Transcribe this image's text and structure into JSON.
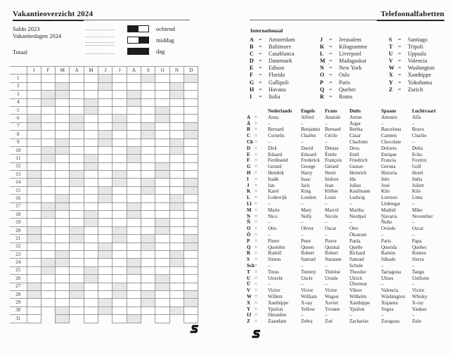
{
  "left_page": {
    "title": "Vakantieoverzicht 2024",
    "fields": [
      "Saldo 2023",
      "Vakantiedagen 2024",
      "Totaal"
    ],
    "legend": [
      {
        "label": "ochtend",
        "style": "morning"
      },
      {
        "label": "middag",
        "style": "afternoon"
      },
      {
        "label": "dag",
        "style": "full"
      }
    ],
    "calendar": {
      "month_labels": [
        "J",
        "F",
        "M",
        "A",
        "M",
        "J",
        "J",
        "A",
        "S",
        "O",
        "N",
        "D"
      ],
      "days_in_month": [
        31,
        29,
        31,
        30,
        31,
        30,
        31,
        31,
        30,
        31,
        30,
        31
      ],
      "weekend_days": [
        [
          6,
          7,
          13,
          14,
          20,
          21,
          27,
          28
        ],
        [
          3,
          4,
          10,
          11,
          17,
          18,
          24,
          25
        ],
        [
          2,
          3,
          9,
          10,
          16,
          17,
          23,
          24,
          30,
          31
        ],
        [
          6,
          7,
          13,
          14,
          20,
          21,
          27,
          28
        ],
        [
          4,
          5,
          11,
          12,
          18,
          19,
          25,
          26
        ],
        [
          1,
          2,
          8,
          9,
          15,
          16,
          22,
          23,
          29,
          30
        ],
        [
          6,
          7,
          13,
          14,
          20,
          21,
          27,
          28
        ],
        [
          3,
          4,
          10,
          11,
          17,
          18,
          24,
          25,
          31
        ],
        [
          1,
          7,
          8,
          14,
          15,
          21,
          22,
          28,
          29
        ],
        [
          5,
          6,
          12,
          13,
          19,
          20,
          26,
          27
        ],
        [
          2,
          3,
          9,
          10,
          16,
          17,
          23,
          24,
          30
        ],
        [
          1,
          7,
          8,
          14,
          15,
          21,
          22,
          28,
          29
        ]
      ]
    }
  },
  "right_page": {
    "title": "Telefoonalfabetten",
    "equals_sign": "=",
    "international": {
      "heading": "Internationaal",
      "columns": [
        [
          [
            "A",
            "Amsterdam"
          ],
          [
            "B",
            "Baltimore"
          ],
          [
            "C",
            "Casablanca"
          ],
          [
            "D",
            "Danemark"
          ],
          [
            "E",
            "Edison"
          ],
          [
            "F",
            "Florida"
          ],
          [
            "G",
            "Gallipoli"
          ],
          [
            "H",
            "Havana"
          ],
          [
            "I",
            "Italia"
          ]
        ],
        [
          [
            "J",
            "Jerusalem"
          ],
          [
            "K",
            "Kilogramme"
          ],
          [
            "L",
            "Liverpool"
          ],
          [
            "M",
            "Madagaskar"
          ],
          [
            "N",
            "New York"
          ],
          [
            "O",
            "Oslo"
          ],
          [
            "P",
            "Paris"
          ],
          [
            "Q",
            "Quebec"
          ],
          [
            "R",
            "Roma"
          ]
        ],
        [
          [
            "S",
            "Santiago"
          ],
          [
            "T",
            "Tripoli"
          ],
          [
            "U",
            "Uppsala"
          ],
          [
            "V",
            "Valencia"
          ],
          [
            "W",
            "Washington"
          ],
          [
            "X",
            "Xanthippe"
          ],
          [
            "Y",
            "Yokohama"
          ],
          [
            "Z",
            "Zurich"
          ]
        ]
      ]
    },
    "alphabet_table": {
      "headers": [
        "Nederlands",
        "Engels",
        "Frans",
        "Duits",
        "Spaans",
        "Luchtvaart"
      ],
      "rows": [
        [
          "A",
          "Anna",
          "Alfred",
          "Anatole",
          "Anton",
          "Antonio",
          "Alfa"
        ],
        [
          "Ä",
          "–",
          "–",
          "–",
          "Ärger",
          "–",
          "–"
        ],
        [
          "B",
          "Bernard",
          "Benjamin",
          "Bernard",
          "Bertha",
          "Barcelona",
          "Bravo"
        ],
        [
          "C",
          "Cornelis",
          "Charles",
          "Cécile",
          "Cäsar",
          "Carmen",
          "Charlie"
        ],
        [
          "Ch",
          "–",
          "–",
          "–",
          "Charlotte",
          "Chocolate",
          "–"
        ],
        [
          "D",
          "Dirk",
          "David",
          "Dénise",
          "Dora",
          "Dolores",
          "Delta"
        ],
        [
          "E",
          "Eduard",
          "Edward",
          "Émile",
          "Emil",
          "Enrique",
          "Echo"
        ],
        [
          "F",
          "Ferdinand",
          "Frederick",
          "François",
          "Friedrich",
          "Francia",
          "Foxtrot"
        ],
        [
          "G",
          "Gerard",
          "George",
          "Gérard",
          "Gustav",
          "Gerona",
          "Golf"
        ],
        [
          "H",
          "Hendrik",
          "Harry",
          "Henri",
          "Heinrich",
          "Historia",
          "Hotel"
        ],
        [
          "I",
          "Izaäk",
          "Isaac",
          "Isidore",
          "Ida",
          "Inés",
          "India"
        ],
        [
          "J",
          "Jan",
          "Jack",
          "Jean",
          "Julius",
          "José",
          "Juliett"
        ],
        [
          "K",
          "Karel",
          "King",
          "Kléber",
          "Kaufmann",
          "Kilo",
          "Kilo"
        ],
        [
          "L",
          "Lodewijk",
          "London",
          "Louis",
          "Ludwig",
          "Lorenzo",
          "Lima"
        ],
        [
          "Ll",
          "–",
          "–",
          "–",
          "–",
          "Llobregat",
          "–"
        ],
        [
          "M",
          "Marie",
          "Mary",
          "Marcel",
          "Martha",
          "Madrid",
          "Mike"
        ],
        [
          "N",
          "Nico",
          "Nelly",
          "Nicole",
          "Nordpol",
          "Navarra",
          "November"
        ],
        [
          "Ñ",
          "–",
          "–",
          "–",
          "–",
          "Ñoño",
          "–"
        ],
        [
          "O",
          "Otto",
          "Oliver",
          "Oscar",
          "Otto",
          "Oviedo",
          "Oscar"
        ],
        [
          "Ö",
          "–",
          "–",
          "–",
          "Ökonom",
          "–",
          "–"
        ],
        [
          "P",
          "Pieter",
          "Peter",
          "Pierre",
          "Paula",
          "Paris",
          "Papa"
        ],
        [
          "Q",
          "Quotiënt",
          "Queen",
          "Quintal",
          "Quelle",
          "Querida",
          "Quebec"
        ],
        [
          "R",
          "Rudolf",
          "Robert",
          "Robert",
          "Richard",
          "Ramón",
          "Romeo"
        ],
        [
          "S",
          "Simon",
          "Samuel",
          "Suzanne",
          "Samuel",
          "Sábado",
          "Sierra"
        ],
        [
          "Sch",
          "–",
          "–",
          "–",
          "Schule",
          "–",
          "–"
        ],
        [
          "T",
          "Tinus",
          "Tommy",
          "Thérèse",
          "Theodor",
          "Tarragona",
          "Tango"
        ],
        [
          "U",
          "Utrecht",
          "Uncle",
          "Ursule",
          "Ulrich",
          "Ulises",
          "Uniform"
        ],
        [
          "Ü",
          "–",
          "–",
          "–",
          "Übermut",
          "–",
          "–"
        ],
        [
          "V",
          "Victor",
          "Victor",
          "Victor",
          "Viktor",
          "Valencia",
          "Victor"
        ],
        [
          "W",
          "Willem",
          "William",
          "Wagon",
          "Wilhelm",
          "Wáshington",
          "Whisky"
        ],
        [
          "X",
          "Xanthippe",
          "X-ray",
          "Xavier",
          "Xanthippe",
          "Xiquena",
          "X-ray"
        ],
        [
          "Y",
          "Ypsilon",
          "Yellow",
          "Yvonne",
          "Ypsilon",
          "Yegua",
          "Yankee"
        ],
        [
          "IJ",
          "IJmuiden",
          "–",
          "–",
          "–",
          "–",
          "–"
        ],
        [
          "Z",
          "Zaandam",
          "Zebra",
          "Zoé",
          "Zacharias",
          "Zaragoza",
          "Zulu"
        ]
      ]
    }
  },
  "colors": {
    "weekend_fill": "#e7e7e7",
    "grid_line": "#9a9a9a",
    "ink": "#222222"
  },
  "logo": {
    "name": "succes-logo"
  }
}
